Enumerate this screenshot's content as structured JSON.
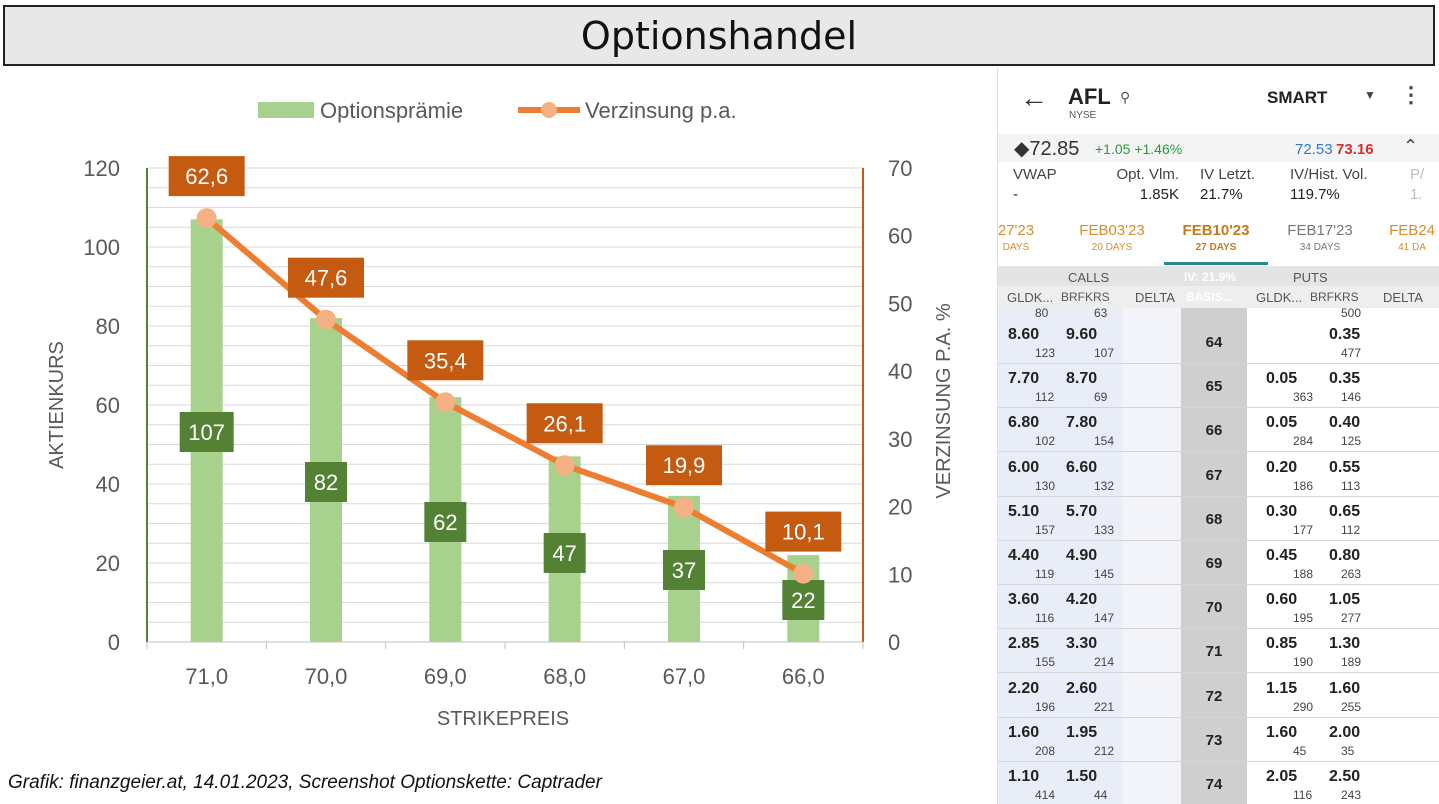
{
  "title": "Optionshandel",
  "caption": "Grafik: finanzgeier.at, 14.01.2023, Screenshot Optionskette: Captrader",
  "colors": {
    "bar": "#a9d18e",
    "bar_label": "#548235",
    "line": "#ed7d31",
    "line_label": "#c55a11",
    "marker": "#f4b183",
    "left_axis": "#548235",
    "right_axis": "#c55a11"
  },
  "chart_data": {
    "type": "bar",
    "categories": [
      "71,0",
      "70,0",
      "69,0",
      "68,0",
      "67,0",
      "66,0"
    ],
    "xlabel": "STRIKEPREIS",
    "ylabel": "AKTIENKURS",
    "y2label": "VERZINSUNG P.A. %",
    "ylim": [
      0,
      120
    ],
    "yticks": [
      "0",
      "20",
      "40",
      "60",
      "80",
      "100",
      "120"
    ],
    "y2lim": [
      0,
      70
    ],
    "y2ticks": [
      "0",
      "10",
      "20",
      "30",
      "40",
      "50",
      "60",
      "70"
    ],
    "grid": true,
    "legend": "top",
    "series": [
      {
        "name": "Optionsprämie",
        "type": "bar",
        "axis": "left",
        "values": [
          107,
          82,
          62,
          47,
          37,
          22
        ],
        "labels": [
          "107",
          "82",
          "62",
          "47",
          "37",
          "22"
        ]
      },
      {
        "name": "Verzinsung p.a.",
        "type": "line",
        "axis": "right",
        "values": [
          62.6,
          47.6,
          35.4,
          26.1,
          19.9,
          10.1
        ],
        "labels": [
          "62,6",
          "47,6",
          "35,4",
          "26,1",
          "19,9",
          "10,1"
        ]
      }
    ]
  },
  "phone": {
    "back_icon": "arrow-left-icon",
    "symbol": "AFL",
    "exchange": "NYSE",
    "routing": "SMART",
    "last": "◆72.85",
    "change": "+1.05 +1.46%",
    "bid": "72.53",
    "ask": "73.16",
    "stats": [
      {
        "label": "VWAP",
        "value": "-"
      },
      {
        "label": "Opt. Vlm.",
        "value": "1.85K"
      },
      {
        "label": "IV Letzt.",
        "value": "21.7%"
      },
      {
        "label": "IV/Hist. Vol.",
        "value": "119.7%"
      },
      {
        "label": "P/",
        "value": "1."
      }
    ],
    "tabs": [
      {
        "date": "27'23",
        "days": "DAYS"
      },
      {
        "date": "FEB03'23",
        "days": "20 DAYS"
      },
      {
        "date": "FEB10'23",
        "days": "27 DAYS"
      },
      {
        "date": "FEB17'23",
        "days": "34 DAYS"
      },
      {
        "date": "FEB24",
        "days": "41 DA"
      }
    ],
    "calls_label": "CALLS",
    "puts_label": "PUTS",
    "iv_label": "IV: 21.9%",
    "col_headers": [
      "GLDK...",
      "BRFKRS",
      "DELTA",
      "BASIS...",
      "GLDK...",
      "BRFKRS",
      "DELTA"
    ],
    "partial_row": {
      "call_bid_size": "80",
      "call_ask_size": "63",
      "put_ask_size": "500"
    },
    "rows": [
      {
        "strike": "64",
        "cb": "8.60",
        "cbs": "123",
        "ca": "9.60",
        "cas": "107",
        "pb": "",
        "pbs": "",
        "pa": "0.35",
        "pas": "477"
      },
      {
        "strike": "65",
        "cb": "7.70",
        "cbs": "112",
        "ca": "8.70",
        "cas": "69",
        "pb": "0.05",
        "pbs": "363",
        "pa": "0.35",
        "pas": "146"
      },
      {
        "strike": "66",
        "cb": "6.80",
        "cbs": "102",
        "ca": "7.80",
        "cas": "154",
        "pb": "0.05",
        "pbs": "284",
        "pa": "0.40",
        "pas": "125"
      },
      {
        "strike": "67",
        "cb": "6.00",
        "cbs": "130",
        "ca": "6.60",
        "cas": "132",
        "pb": "0.20",
        "pbs": "186",
        "pa": "0.55",
        "pas": "113"
      },
      {
        "strike": "68",
        "cb": "5.10",
        "cbs": "157",
        "ca": "5.70",
        "cas": "133",
        "pb": "0.30",
        "pbs": "177",
        "pa": "0.65",
        "pas": "112"
      },
      {
        "strike": "69",
        "cb": "4.40",
        "cbs": "119",
        "ca": "4.90",
        "cas": "145",
        "pb": "0.45",
        "pbs": "188",
        "pa": "0.80",
        "pas": "263"
      },
      {
        "strike": "70",
        "cb": "3.60",
        "cbs": "116",
        "ca": "4.20",
        "cas": "147",
        "pb": "0.60",
        "pbs": "195",
        "pa": "1.05",
        "pas": "277"
      },
      {
        "strike": "71",
        "cb": "2.85",
        "cbs": "155",
        "ca": "3.30",
        "cas": "214",
        "pb": "0.85",
        "pbs": "190",
        "pa": "1.30",
        "pas": "189"
      },
      {
        "strike": "72",
        "cb": "2.20",
        "cbs": "196",
        "ca": "2.60",
        "cas": "221",
        "pb": "1.15",
        "pbs": "290",
        "pa": "1.60",
        "pas": "255"
      },
      {
        "strike": "73",
        "cb": "1.60",
        "cbs": "208",
        "ca": "1.95",
        "cas": "212",
        "pb": "1.60",
        "pbs": "45",
        "pa": "2.00",
        "pas": "35"
      },
      {
        "strike": "74",
        "cb": "1.10",
        "cbs": "414",
        "ca": "1.50",
        "cas": "44",
        "pb": "2.05",
        "pbs": "116",
        "pa": "2.50",
        "pas": "243"
      }
    ]
  }
}
